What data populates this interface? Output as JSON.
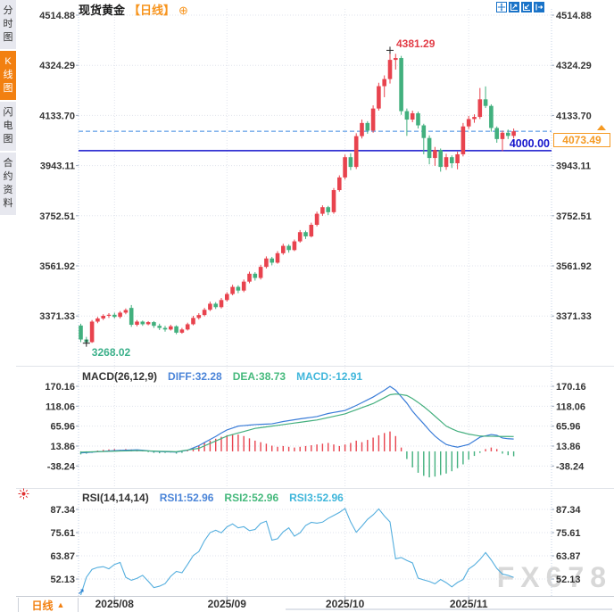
{
  "window": {
    "watermark": "FX678"
  },
  "header": {
    "symbol": "现货黄金",
    "period_tag": "【日线】",
    "add_button": "⊕"
  },
  "toolbar": {
    "buttons": [
      "crosshair",
      "zoom-in-chart",
      "zoom-out-chart",
      "pan-right"
    ]
  },
  "sidebar": {
    "tabs": [
      {
        "label": "分时图",
        "active": false
      },
      {
        "label": "K线图",
        "active": true
      },
      {
        "label": "闪电图",
        "active": false
      },
      {
        "label": "合约资料",
        "active": false
      }
    ]
  },
  "bottom_bar": {
    "period_label": "日线",
    "arrow": "▲"
  },
  "colors": {
    "accent_orange": "#f28011",
    "toolbar_blue": "#1a73c8",
    "candle_up": "#e8434e",
    "candle_down": "#42b07e",
    "diff_line": "#3b7dd8",
    "dea_line": "#44af7e",
    "rsi_line": "#54aede",
    "hline_blue": "#1414cc",
    "dashed_blue": "#3a86e0",
    "price_tag": "#f59a23",
    "grid": "#dfe3ec",
    "plot_edge": "#c3d2e6",
    "axis_text": "#333333",
    "high_label": "#e23b45",
    "low_label": "#3bb08a"
  },
  "chart_data": {
    "type": "candlestick",
    "symbol": "现货黄金",
    "interval": "日线",
    "x_axis": {
      "labels": [
        "2025/08",
        "2025/09",
        "2025/10",
        "2025/11"
      ],
      "candle_indices": [
        6,
        26,
        47,
        69
      ]
    },
    "main": {
      "y_ticks": [
        "4514.88",
        "4324.29",
        "4133.70",
        "3943.11",
        "3752.51",
        "3561.92",
        "3371.33"
      ],
      "high_annotation": {
        "value": 4381.29,
        "label": "4381.29",
        "index": 55
      },
      "low_annotation": {
        "value": 3268.02,
        "label": "3268.02",
        "index": 1
      },
      "solid_hline": {
        "value": 4000.0,
        "label": "4000.00"
      },
      "dashed_hline": {
        "value": 4073.49
      },
      "last_price_tag": {
        "label": "4073.49"
      },
      "candles": [
        [
          3335,
          3342,
          3272,
          3282
        ],
        [
          3282,
          3292,
          3268.02,
          3272
        ],
        [
          3272,
          3356,
          3269,
          3350
        ],
        [
          3350,
          3368,
          3344,
          3362
        ],
        [
          3362,
          3378,
          3356,
          3372
        ],
        [
          3372,
          3382,
          3364,
          3376
        ],
        [
          3376,
          3384,
          3362,
          3368
        ],
        [
          3368,
          3390,
          3362,
          3384
        ],
        [
          3384,
          3400,
          3378,
          3394
        ],
        [
          3402,
          3413,
          3330,
          3338
        ],
        [
          3338,
          3356,
          3332,
          3350
        ],
        [
          3350,
          3354,
          3334,
          3340
        ],
        [
          3340,
          3352,
          3336,
          3348
        ],
        [
          3348,
          3352,
          3326,
          3334
        ],
        [
          3334,
          3342,
          3318,
          3326
        ],
        [
          3326,
          3334,
          3312,
          3320
        ],
        [
          3320,
          3338,
          3316,
          3332
        ],
        [
          3332,
          3336,
          3302,
          3308
        ],
        [
          3308,
          3326,
          3304,
          3320
        ],
        [
          3320,
          3346,
          3316,
          3340
        ],
        [
          3340,
          3372,
          3336,
          3364
        ],
        [
          3364,
          3382,
          3358,
          3375
        ],
        [
          3375,
          3402,
          3370,
          3395
        ],
        [
          3395,
          3426,
          3390,
          3418
        ],
        [
          3418,
          3424,
          3398,
          3405
        ],
        [
          3405,
          3440,
          3400,
          3432
        ],
        [
          3432,
          3462,
          3426,
          3455
        ],
        [
          3455,
          3490,
          3450,
          3482
        ],
        [
          3482,
          3488,
          3458,
          3468
        ],
        [
          3468,
          3510,
          3462,
          3502
        ],
        [
          3502,
          3540,
          3496,
          3532
        ],
        [
          3532,
          3538,
          3506,
          3516
        ],
        [
          3516,
          3566,
          3510,
          3558
        ],
        [
          3558,
          3598,
          3552,
          3590
        ],
        [
          3590,
          3596,
          3564,
          3574
        ],
        [
          3574,
          3618,
          3570,
          3610
        ],
        [
          3610,
          3646,
          3604,
          3638
        ],
        [
          3638,
          3644,
          3612,
          3622
        ],
        [
          3622,
          3662,
          3618,
          3655
        ],
        [
          3655,
          3698,
          3650,
          3690
        ],
        [
          3690,
          3696,
          3664,
          3674
        ],
        [
          3674,
          3726,
          3670,
          3718
        ],
        [
          3718,
          3768,
          3712,
          3760
        ],
        [
          3760,
          3792,
          3752,
          3785
        ],
        [
          3785,
          3790,
          3755,
          3766
        ],
        [
          3766,
          3858,
          3760,
          3850
        ],
        [
          3850,
          3906,
          3844,
          3898
        ],
        [
          3898,
          3985,
          3890,
          3975
        ],
        [
          3975,
          3990,
          3926,
          3938
        ],
        [
          3938,
          4066,
          3930,
          4055
        ],
        [
          4055,
          4118,
          4046,
          4105
        ],
        [
          4105,
          4112,
          4064,
          4076
        ],
        [
          4076,
          4172,
          4068,
          4160
        ],
        [
          4160,
          4258,
          4152,
          4245
        ],
        [
          4245,
          4286,
          4203,
          4272
        ],
        [
          4272,
          4381.29,
          4255,
          4345
        ],
        [
          4345,
          4368,
          4308,
          4352
        ],
        [
          4352,
          4360,
          4136,
          4150
        ],
        [
          4150,
          4160,
          4056,
          4118
        ],
        [
          4118,
          4152,
          4108,
          4142
        ],
        [
          4142,
          4148,
          4084,
          4096
        ],
        [
          4096,
          4102,
          3986,
          4048
        ],
        [
          4048,
          4058,
          3948,
          3972
        ],
        [
          3972,
          4014,
          3942,
          4002
        ],
        [
          4002,
          4008,
          3920,
          3938
        ],
        [
          3938,
          3988,
          3927,
          3975
        ],
        [
          3975,
          3982,
          3934,
          3952
        ],
        [
          3952,
          3996,
          3929,
          3986
        ],
        [
          3986,
          4105,
          3978,
          4092
        ],
        [
          4092,
          4132,
          4082,
          4120
        ],
        [
          4120,
          4138,
          4106,
          4128
        ],
        [
          4128,
          4238,
          4120,
          4195
        ],
        [
          4195,
          4244,
          4162,
          4170
        ],
        [
          4170,
          4176,
          4072,
          4086
        ],
        [
          4086,
          4092,
          4030,
          4044
        ],
        [
          4044,
          4076,
          3998,
          4068
        ],
        [
          4068,
          4080,
          4044,
          4056
        ],
        [
          4056,
          4084,
          4046,
          4073.49
        ]
      ]
    },
    "macd": {
      "title": "MACD(26,12,9)",
      "diff_text": "DIFF:32.28",
      "dea_text": "DEA:38.73",
      "macd_text": "MACD:-12.91",
      "y_ticks": [
        "170.16",
        "118.06",
        "65.96",
        "13.86",
        "-38.24"
      ],
      "diff": [
        -4,
        -3,
        -2,
        -1,
        0,
        1,
        2,
        2.5,
        3,
        3.5,
        4,
        2.7,
        1.3,
        0,
        -0.5,
        -1,
        -1.5,
        -2,
        0.5,
        3,
        9,
        15,
        23,
        31,
        39,
        48,
        56,
        61,
        66,
        67.3,
        68.7,
        70,
        70.7,
        71.3,
        72,
        75,
        78,
        80.3,
        82.7,
        85,
        87,
        89,
        91,
        95,
        99,
        101.7,
        104.3,
        107,
        113.5,
        120,
        127.3,
        134.7,
        142,
        151,
        160,
        170,
        160,
        143,
        126,
        105,
        88,
        72,
        55,
        40,
        28,
        18,
        14,
        11,
        14.5,
        18,
        27.5,
        37,
        40.5,
        44,
        42,
        35,
        33,
        32.28
      ],
      "dea": [
        -2,
        -1.6,
        -1.2,
        -0.8,
        -0.4,
        0,
        0.4,
        0.8,
        1.2,
        1.6,
        2,
        1.6,
        1.1,
        0.7,
        0.3,
        -0.1,
        -0.5,
        -1,
        1.3,
        3.5,
        5.8,
        8,
        14.4,
        20.8,
        27.2,
        33.6,
        40,
        44,
        48,
        52,
        56,
        60,
        62,
        64,
        66,
        68,
        70,
        72,
        74,
        76,
        78,
        80,
        82,
        85.2,
        88.4,
        91.6,
        94.8,
        98,
        103.4,
        108.8,
        114.2,
        119.6,
        125,
        132.7,
        140.3,
        148,
        150,
        148.5,
        146,
        138,
        128,
        117,
        105,
        92,
        79,
        66,
        59,
        52.5,
        48.8,
        45,
        42.5,
        40,
        39.7,
        39.4,
        39.1,
        39,
        38.9,
        38.73
      ],
      "hist": [
        -8,
        -6,
        -4,
        2,
        4,
        5,
        6,
        4,
        6,
        5,
        4,
        2,
        -2,
        -4,
        -5,
        -4,
        -3,
        -6,
        -4,
        2,
        8,
        15,
        22,
        28,
        33,
        38,
        42,
        45,
        44,
        40,
        34,
        28,
        24,
        20,
        15,
        12,
        14,
        12,
        10,
        12,
        14,
        16,
        18,
        20,
        22,
        18,
        14,
        18,
        22,
        28,
        24,
        30,
        36,
        42,
        48,
        52,
        40,
        10,
        -20,
        -42,
        -56,
        -64,
        -68,
        -66,
        -62,
        -58,
        -52,
        -44,
        -34,
        -22,
        -12,
        -4,
        6,
        10,
        6,
        -6,
        -10,
        -12.91
      ]
    },
    "rsi": {
      "title": "RSI(14,14,14)",
      "rsi1_text": "RSI1:52.96",
      "rsi2_text": "RSI2:52.96",
      "rsi3_text": "RSI3:52.96",
      "y_ticks": [
        "87.34",
        "75.61",
        "63.87",
        "52.13"
      ],
      "values": [
        44,
        53,
        57,
        58,
        58.4,
        57.3,
        59.5,
        60.5,
        53,
        51.5,
        52.5,
        54,
        51,
        47.8,
        48.5,
        49.8,
        53.5,
        56,
        55.3,
        59.5,
        64,
        66,
        71.5,
        75.6,
        76.8,
        75.5,
        78.5,
        80,
        78,
        78.6,
        76.6,
        77.2,
        80.3,
        81.4,
        71.8,
        72.5,
        76,
        78,
        73.8,
        75.5,
        79.2,
        80.8,
        80.4,
        80.9,
        82.8,
        84.3,
        85.8,
        87.8,
        81,
        75.8,
        78.9,
        82.3,
        84.6,
        87.6,
        84,
        81,
        62.4,
        63,
        61.5,
        60.3,
        52.6,
        51.7,
        50.9,
        49.7,
        51.9,
        50.3,
        48.2,
        50.4,
        51.9,
        57.2,
        59.2,
        62,
        65.5,
        61.8,
        57.5,
        54.6,
        54,
        52.96
      ]
    }
  }
}
